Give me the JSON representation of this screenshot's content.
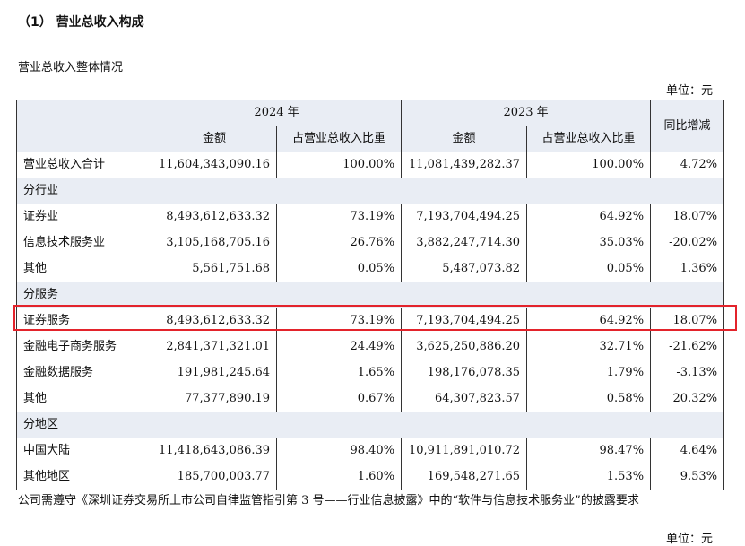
{
  "heading": "（1） 营业总收入构成",
  "subtitle": "营业总收入整体情况",
  "unit": "单位：元",
  "table": {
    "year_2024": "2024 年",
    "year_2023": "2023 年",
    "yoy": "同比增减",
    "col_amount": "金额",
    "col_ratio": "占营业总收入比重",
    "total": {
      "label": "营业总收入合计",
      "amt24": "11,604,343,090.16",
      "r24": "100.00%",
      "amt23": "11,081,439,282.37",
      "r23": "100.00%",
      "yoy": "4.72%"
    },
    "sec_industry": "分行业",
    "industry": [
      {
        "label": "证券业",
        "amt24": "8,493,612,633.32",
        "r24": "73.19%",
        "amt23": "7,193,704,494.25",
        "r23": "64.92%",
        "yoy": "18.07%"
      },
      {
        "label": "信息技术服务业",
        "amt24": "3,105,168,705.16",
        "r24": "26.76%",
        "amt23": "3,882,247,714.30",
        "r23": "35.03%",
        "yoy": "-20.02%"
      },
      {
        "label": "其他",
        "amt24": "5,561,751.68",
        "r24": "0.05%",
        "amt23": "5,487,073.82",
        "r23": "0.05%",
        "yoy": "1.36%"
      }
    ],
    "sec_service": "分服务",
    "service": [
      {
        "label": "证券服务",
        "amt24": "8,493,612,633.32",
        "r24": "73.19%",
        "amt23": "7,193,704,494.25",
        "r23": "64.92%",
        "yoy": "18.07%"
      },
      {
        "label": "金融电子商务服务",
        "amt24": "2,841,371,321.01",
        "r24": "24.49%",
        "amt23": "3,625,250,886.20",
        "r23": "32.71%",
        "yoy": "-21.62%"
      },
      {
        "label": "金融数据服务",
        "amt24": "191,981,245.64",
        "r24": "1.65%",
        "amt23": "198,176,078.35",
        "r23": "1.79%",
        "yoy": "-3.13%"
      },
      {
        "label": "其他",
        "amt24": "77,377,890.19",
        "r24": "0.67%",
        "amt23": "64,307,823.57",
        "r23": "0.58%",
        "yoy": "20.32%"
      }
    ],
    "sec_region": "分地区",
    "region": [
      {
        "label": "中国大陆",
        "amt24": "11,418,643,086.39",
        "r24": "98.40%",
        "amt23": "10,911,891,010.72",
        "r23": "98.47%",
        "yoy": "4.64%"
      },
      {
        "label": "其他地区",
        "amt24": "185,700,003.77",
        "r24": "1.60%",
        "amt23": "169,548,271.65",
        "r23": "1.53%",
        "yoy": "9.53%"
      }
    ]
  },
  "note": "公司需遵守《深圳证券交易所上市公司自律监管指引第 3 号——行业信息披露》中的“软件与信息技术服务业”的披露要求",
  "cut_text": "单位：元",
  "highlight_color": "#e3232b"
}
